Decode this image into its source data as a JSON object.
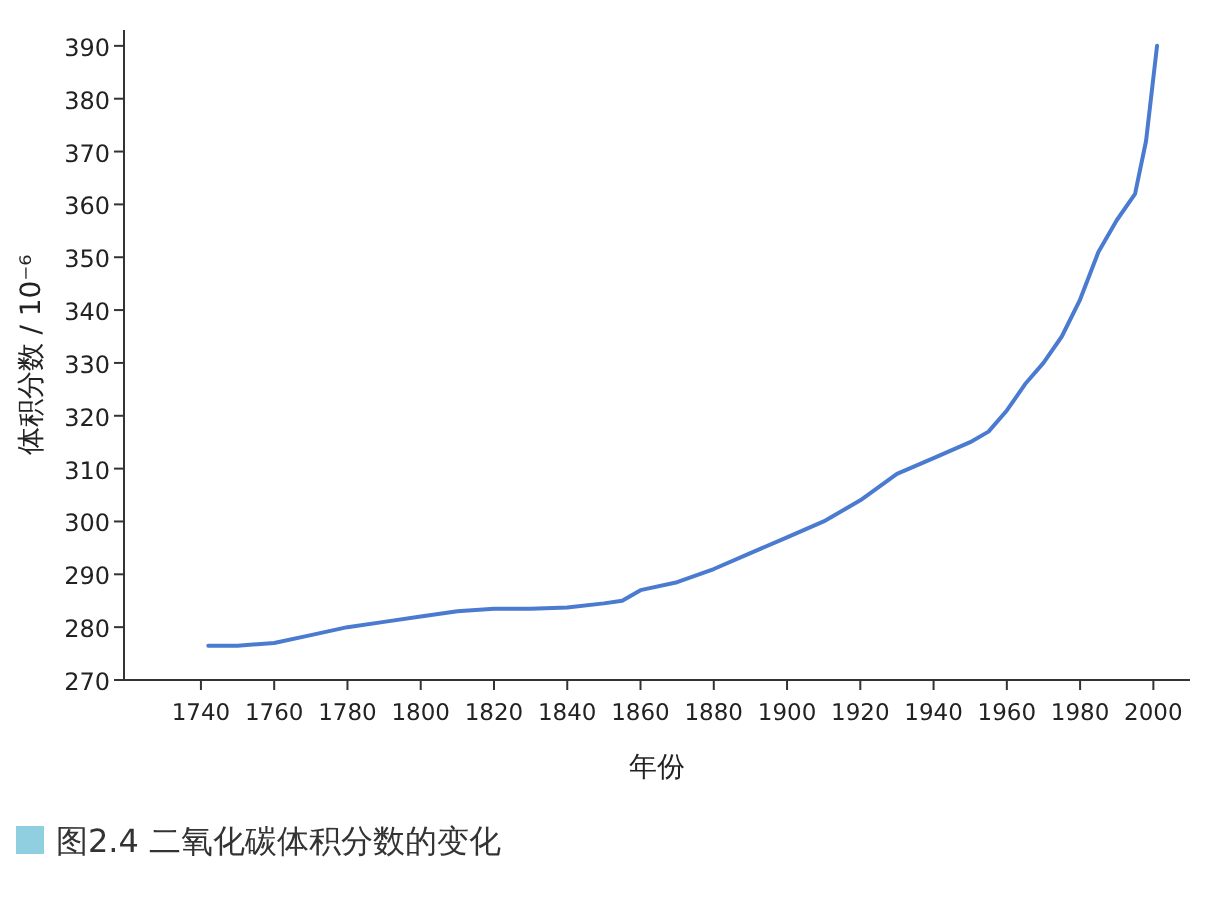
{
  "chart_data": {
    "type": "line",
    "xlabel": "年份",
    "ylabel": "体积分数 / 10⁻⁶",
    "annotations": [
      "图2.4   二氧化碳体积分数的变化"
    ],
    "xlim": [
      1719,
      2010
    ],
    "ylim": [
      270,
      393
    ],
    "xticks": [
      1740,
      1760,
      1780,
      1800,
      1820,
      1840,
      1860,
      1880,
      1900,
      1920,
      1940,
      1960,
      1980,
      2000
    ],
    "yticks": [
      270,
      280,
      290,
      300,
      310,
      320,
      330,
      340,
      350,
      360,
      370,
      380,
      390
    ],
    "grid": false,
    "marker": "none",
    "line_style": "solid",
    "series": [
      {
        "color": "#4a7bd0",
        "x": [
          1742,
          1750,
          1760,
          1770,
          1780,
          1790,
          1800,
          1810,
          1820,
          1830,
          1840,
          1850,
          1855,
          1860,
          1870,
          1880,
          1890,
          1900,
          1910,
          1920,
          1930,
          1940,
          1950,
          1955,
          1960,
          1965,
          1970,
          1975,
          1980,
          1985,
          1990,
          1995,
          1998,
          2001
        ],
        "values": [
          276.5,
          276.5,
          277,
          278.5,
          280,
          281,
          282,
          283,
          283.5,
          283.5,
          283.7,
          284.5,
          285,
          287,
          288.5,
          291,
          294,
          297,
          300,
          304,
          309,
          312,
          315,
          317,
          321,
          326,
          330,
          335,
          342,
          351,
          357,
          362,
          372,
          390
        ]
      }
    ]
  }
}
